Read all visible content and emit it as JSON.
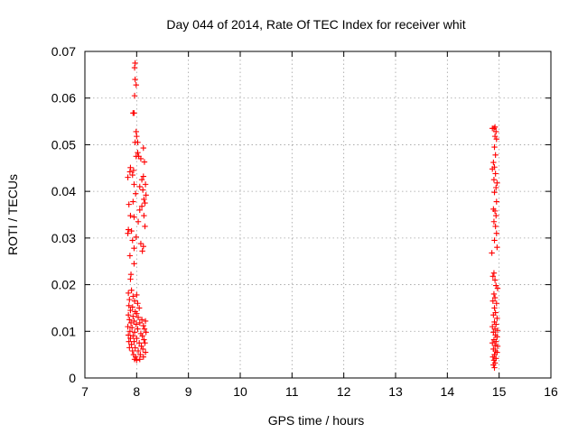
{
  "chart_data": {
    "type": "scatter",
    "title": "Day 044 of 2014, Rate Of TEC Index for receiver whit",
    "xlabel": "GPS time / hours",
    "ylabel": "ROTI / TECUs",
    "xlim": [
      7,
      16
    ],
    "ylim": [
      0,
      0.07
    ],
    "xticks": [
      "7",
      "8",
      "9",
      "10",
      "11",
      "12",
      "13",
      "14",
      "15",
      "16"
    ],
    "yticks": [
      "0",
      "0.01",
      "0.02",
      "0.03",
      "0.04",
      "0.05",
      "0.06",
      "0.07"
    ],
    "grid": true,
    "legend": "none",
    "marker": "plus",
    "series": [
      {
        "color": "#ff0000",
        "points": [
          [
            7.97,
            0.0675
          ],
          [
            7.96,
            0.0665
          ],
          [
            7.97,
            0.064
          ],
          [
            7.99,
            0.0628
          ],
          [
            7.96,
            0.0605
          ],
          [
            7.93,
            0.0568
          ],
          [
            7.95,
            0.0568
          ],
          [
            7.99,
            0.0528
          ],
          [
            8.0,
            0.0518
          ],
          [
            7.97,
            0.0505
          ],
          [
            8.02,
            0.0505
          ],
          [
            8.13,
            0.0493
          ],
          [
            8.02,
            0.0483
          ],
          [
            7.99,
            0.0475
          ],
          [
            8.04,
            0.0475
          ],
          [
            8.08,
            0.047
          ],
          [
            8.15,
            0.0463
          ],
          [
            7.88,
            0.0451
          ],
          [
            7.94,
            0.0445
          ],
          [
            7.87,
            0.0442
          ],
          [
            7.92,
            0.0435
          ],
          [
            8.13,
            0.0432
          ],
          [
            7.83,
            0.043
          ],
          [
            8.1,
            0.0425
          ],
          [
            7.95,
            0.0415
          ],
          [
            8.17,
            0.0415
          ],
          [
            8.06,
            0.041
          ],
          [
            8.12,
            0.0403
          ],
          [
            7.98,
            0.0395
          ],
          [
            8.18,
            0.0392
          ],
          [
            8.14,
            0.0383
          ],
          [
            7.93,
            0.0378
          ],
          [
            8.16,
            0.0375
          ],
          [
            7.85,
            0.0372
          ],
          [
            8.1,
            0.0368
          ],
          [
            8.06,
            0.036
          ],
          [
            7.88,
            0.0348
          ],
          [
            7.95,
            0.0345
          ],
          [
            8.14,
            0.0348
          ],
          [
            8.03,
            0.0335
          ],
          [
            8.16,
            0.0325
          ],
          [
            7.84,
            0.0318
          ],
          [
            7.9,
            0.0315
          ],
          [
            7.83,
            0.031
          ],
          [
            7.99,
            0.0302
          ],
          [
            7.92,
            0.0295
          ],
          [
            8.08,
            0.0288
          ],
          [
            8.13,
            0.0282
          ],
          [
            7.95,
            0.0278
          ],
          [
            8.11,
            0.0272
          ],
          [
            7.87,
            0.0262
          ],
          [
            7.95,
            0.0245
          ],
          [
            7.89,
            0.0222
          ],
          [
            7.88,
            0.0212
          ],
          [
            7.9,
            0.0188
          ],
          [
            7.84,
            0.0182
          ],
          [
            7.93,
            0.0175
          ],
          [
            8.0,
            0.0178
          ],
          [
            7.86,
            0.0168
          ],
          [
            7.96,
            0.0165
          ],
          [
            8.02,
            0.016
          ],
          [
            7.85,
            0.0155
          ],
          [
            7.92,
            0.0152
          ],
          [
            8.05,
            0.015
          ],
          [
            7.88,
            0.0145
          ],
          [
            7.97,
            0.0142
          ],
          [
            8.0,
            0.0138
          ],
          [
            7.84,
            0.0135
          ],
          [
            7.93,
            0.0132
          ],
          [
            8.03,
            0.013
          ],
          [
            7.86,
            0.0125
          ],
          [
            7.95,
            0.0122
          ],
          [
            8.1,
            0.0125
          ],
          [
            8.17,
            0.0122
          ],
          [
            7.89,
            0.0118
          ],
          [
            7.99,
            0.0115
          ],
          [
            8.06,
            0.0118
          ],
          [
            8.13,
            0.0112
          ],
          [
            7.83,
            0.011
          ],
          [
            7.91,
            0.0108
          ],
          [
            8.02,
            0.0105
          ],
          [
            8.15,
            0.0105
          ],
          [
            7.87,
            0.01
          ],
          [
            7.96,
            0.0098
          ],
          [
            8.08,
            0.0095
          ],
          [
            8.18,
            0.0098
          ],
          [
            7.84,
            0.0092
          ],
          [
            7.93,
            0.009
          ],
          [
            8.11,
            0.009
          ],
          [
            7.88,
            0.0085
          ],
          [
            8.0,
            0.0085
          ],
          [
            8.14,
            0.0082
          ],
          [
            7.85,
            0.0078
          ],
          [
            7.95,
            0.0078
          ],
          [
            8.05,
            0.0075
          ],
          [
            8.16,
            0.0075
          ],
          [
            7.9,
            0.0072
          ],
          [
            8.09,
            0.0068
          ],
          [
            7.86,
            0.0065
          ],
          [
            7.97,
            0.0065
          ],
          [
            8.12,
            0.0062
          ],
          [
            7.92,
            0.0058
          ],
          [
            8.03,
            0.0058
          ],
          [
            8.17,
            0.0055
          ],
          [
            7.94,
            0.005
          ],
          [
            8.07,
            0.005
          ],
          [
            7.98,
            0.0045
          ],
          [
            8.13,
            0.0045
          ],
          [
            7.96,
            0.004
          ],
          [
            8.06,
            0.004
          ],
          [
            8.0,
            0.0038
          ],
          [
            14.92,
            0.0538
          ],
          [
            14.87,
            0.0535
          ],
          [
            14.9,
            0.0535
          ],
          [
            14.94,
            0.0528
          ],
          [
            14.92,
            0.0518
          ],
          [
            14.95,
            0.0512
          ],
          [
            14.91,
            0.0495
          ],
          [
            14.93,
            0.0478
          ],
          [
            14.89,
            0.0462
          ],
          [
            14.91,
            0.0452
          ],
          [
            14.87,
            0.0448
          ],
          [
            14.93,
            0.0438
          ],
          [
            14.9,
            0.0425
          ],
          [
            14.96,
            0.0418
          ],
          [
            14.94,
            0.0408
          ],
          [
            14.91,
            0.0398
          ],
          [
            14.95,
            0.0378
          ],
          [
            14.89,
            0.0362
          ],
          [
            14.92,
            0.0358
          ],
          [
            14.94,
            0.0348
          ],
          [
            14.9,
            0.0335
          ],
          [
            14.93,
            0.0325
          ],
          [
            14.95,
            0.031
          ],
          [
            14.91,
            0.0295
          ],
          [
            14.96,
            0.028
          ],
          [
            14.86,
            0.0268
          ],
          [
            14.9,
            0.0225
          ],
          [
            14.88,
            0.0218
          ],
          [
            14.92,
            0.021
          ],
          [
            14.94,
            0.0198
          ],
          [
            14.97,
            0.0192
          ],
          [
            14.9,
            0.018
          ],
          [
            14.92,
            0.0172
          ],
          [
            14.88,
            0.0165
          ],
          [
            14.95,
            0.016
          ],
          [
            14.91,
            0.015
          ],
          [
            14.93,
            0.014
          ],
          [
            14.89,
            0.0135
          ],
          [
            14.96,
            0.0128
          ],
          [
            14.91,
            0.012
          ],
          [
            14.94,
            0.0115
          ],
          [
            14.87,
            0.011
          ],
          [
            14.92,
            0.0105
          ],
          [
            14.97,
            0.0102
          ],
          [
            14.89,
            0.0098
          ],
          [
            14.93,
            0.0092
          ],
          [
            14.96,
            0.0088
          ],
          [
            14.9,
            0.0082
          ],
          [
            14.94,
            0.0078
          ],
          [
            14.87,
            0.0075
          ],
          [
            14.92,
            0.007
          ],
          [
            14.97,
            0.0068
          ],
          [
            14.89,
            0.0062
          ],
          [
            14.93,
            0.0058
          ],
          [
            14.96,
            0.0055
          ],
          [
            14.91,
            0.005
          ],
          [
            14.88,
            0.0045
          ],
          [
            14.94,
            0.0042
          ],
          [
            14.9,
            0.0038
          ],
          [
            14.92,
            0.0032
          ],
          [
            14.89,
            0.0028
          ],
          [
            14.91,
            0.0022
          ]
        ]
      }
    ]
  }
}
